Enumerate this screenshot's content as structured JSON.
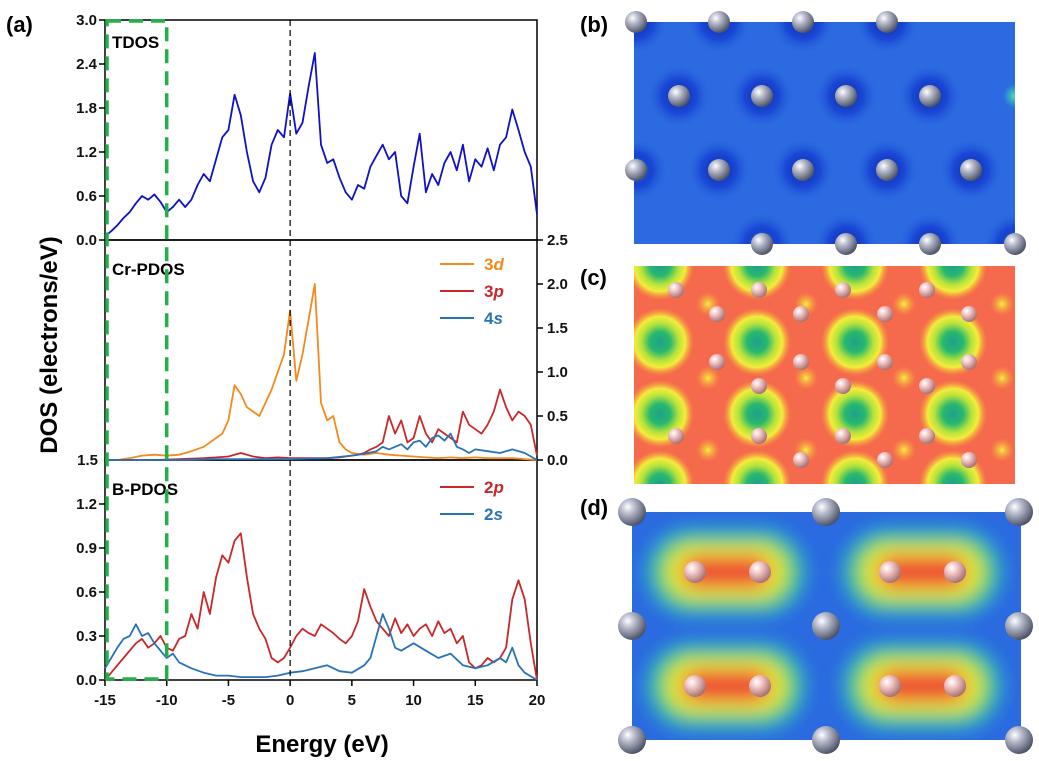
{
  "figure": {
    "panel_labels": [
      "(a)",
      "(b)",
      "(c)",
      "(d)"
    ],
    "colors": {
      "tdos": "#1010c8",
      "cr_3d": "#f28a1e",
      "cr_3p": "#c8282a",
      "cr_4s": "#2a72b8",
      "b_2p": "#c8282a",
      "b_2s": "#2a72b8",
      "dashed_box": "#22b04a",
      "fermi_line": "#000000"
    }
  },
  "chart_data": [
    {
      "type": "line",
      "title": "TDOS",
      "xlabel": "Energy (eV)",
      "ylabel": "DOS (electrons/eV)",
      "xlim": [
        -15,
        20
      ],
      "ylim": [
        0,
        3.0
      ],
      "x_ticks": [
        "-15",
        "-10",
        "-5",
        "0",
        "5",
        "10",
        "15",
        "20"
      ],
      "y_ticks": [
        "0.0",
        "0.6",
        "1.2",
        "1.8",
        "2.4",
        "3.0"
      ],
      "series": [
        {
          "name": "TDOS",
          "color_key": "tdos",
          "x": [
            -15,
            -14.5,
            -14,
            -13.5,
            -13,
            -12.5,
            -12,
            -11.5,
            -11,
            -10.5,
            -10,
            -9.5,
            -9,
            -8.5,
            -8,
            -7.5,
            -7,
            -6.5,
            -6,
            -5.5,
            -5,
            -4.5,
            -4,
            -3.5,
            -3,
            -2.5,
            -2,
            -1.5,
            -1,
            -0.5,
            0,
            0.5,
            1,
            1.5,
            2,
            2.5,
            3,
            3.5,
            4,
            4.5,
            5,
            5.5,
            6,
            6.5,
            7,
            7.5,
            8,
            8.5,
            9,
            9.5,
            10,
            10.5,
            11,
            11.5,
            12,
            12.5,
            13,
            13.5,
            14,
            14.5,
            15,
            15.5,
            16,
            16.5,
            17,
            17.5,
            18,
            18.5,
            19,
            19.5,
            20
          ],
          "values": [
            0.05,
            0.12,
            0.2,
            0.3,
            0.38,
            0.5,
            0.6,
            0.55,
            0.62,
            0.52,
            0.38,
            0.45,
            0.55,
            0.45,
            0.55,
            0.75,
            0.9,
            0.8,
            1.1,
            1.4,
            1.5,
            1.98,
            1.7,
            1.2,
            0.8,
            0.65,
            0.85,
            1.3,
            1.5,
            1.4,
            2.0,
            1.45,
            1.6,
            2.1,
            2.55,
            1.3,
            1.05,
            1.1,
            0.85,
            0.65,
            0.55,
            0.75,
            0.7,
            1.0,
            1.15,
            1.3,
            1.1,
            1.2,
            0.6,
            0.5,
            1.0,
            1.45,
            0.65,
            0.9,
            0.75,
            1.05,
            1.2,
            0.95,
            1.3,
            0.8,
            1.1,
            1.0,
            1.25,
            0.95,
            1.3,
            1.4,
            1.78,
            1.5,
            1.2,
            1.0,
            0.35
          ]
        }
      ]
    },
    {
      "type": "line",
      "title": "Cr-PDOS",
      "xlim": [
        -15,
        20
      ],
      "ylim": [
        0,
        2.5
      ],
      "y_ticks": [
        "0.0",
        "0.5",
        "1.0",
        "1.5",
        "2.0",
        "2.5"
      ],
      "left_tick": "1.5",
      "legend": [
        {
          "base": "3",
          "orbital": "d",
          "color_key": "cr_3d"
        },
        {
          "base": "3",
          "orbital": "p",
          "color_key": "cr_3p"
        },
        {
          "base": "4",
          "orbital": "s",
          "color_key": "cr_4s"
        }
      ],
      "series": [
        {
          "name": "3d",
          "color_key": "cr_3d",
          "x": [
            -15,
            -14,
            -13,
            -12,
            -11,
            -10,
            -9,
            -8,
            -7,
            -6,
            -5.5,
            -5,
            -4.5,
            -4,
            -3.5,
            -3,
            -2.5,
            -2,
            -1.5,
            -1,
            -0.5,
            0,
            0.5,
            1,
            1.5,
            2,
            2.5,
            3,
            3.5,
            4,
            4.5,
            5,
            6,
            7,
            8,
            9,
            10,
            11,
            12,
            13,
            14,
            15,
            16,
            17,
            18,
            19,
            20
          ],
          "values": [
            0.0,
            0.0,
            0.02,
            0.05,
            0.06,
            0.05,
            0.06,
            0.1,
            0.15,
            0.25,
            0.3,
            0.45,
            0.85,
            0.75,
            0.6,
            0.55,
            0.5,
            0.65,
            0.8,
            1.0,
            1.2,
            1.7,
            0.9,
            1.2,
            1.6,
            2.0,
            0.65,
            0.45,
            0.5,
            0.2,
            0.12,
            0.08,
            0.06,
            0.08,
            0.06,
            0.05,
            0.04,
            0.03,
            0.02,
            0.03,
            0.02,
            0.03,
            0.02,
            0.02,
            0.02,
            0.01,
            0.0
          ]
        },
        {
          "name": "3p",
          "color_key": "cr_3p",
          "x": [
            -15,
            -13,
            -11,
            -9,
            -7,
            -6,
            -5,
            -4,
            -3,
            -2,
            -1,
            0,
            1,
            2,
            3,
            4,
            5,
            5.5,
            6,
            6.5,
            7,
            7.5,
            8,
            8.5,
            9,
            9.5,
            10,
            10.5,
            11,
            11.5,
            12,
            12.5,
            13,
            13.5,
            14,
            14.5,
            15,
            15.5,
            16,
            16.5,
            17,
            17.5,
            18,
            18.5,
            19,
            19.5,
            20
          ],
          "values": [
            0.0,
            0.0,
            0.0,
            0.01,
            0.02,
            0.03,
            0.04,
            0.08,
            0.04,
            0.02,
            0.03,
            0.02,
            0.02,
            0.02,
            0.02,
            0.03,
            0.05,
            0.06,
            0.08,
            0.12,
            0.15,
            0.2,
            0.5,
            0.3,
            0.45,
            0.2,
            0.25,
            0.5,
            0.3,
            0.2,
            0.35,
            0.3,
            0.25,
            0.2,
            0.55,
            0.4,
            0.35,
            0.3,
            0.4,
            0.55,
            0.8,
            0.6,
            0.45,
            0.55,
            0.5,
            0.4,
            0.05
          ]
        },
        {
          "name": "4s",
          "color_key": "cr_4s",
          "x": [
            -15,
            -12,
            -9,
            -6,
            -3,
            0,
            3,
            5,
            6,
            7,
            7.5,
            8,
            8.5,
            9,
            9.5,
            10,
            10.5,
            11,
            11.5,
            12,
            12.5,
            13,
            13.5,
            14,
            14.5,
            15,
            16,
            17,
            18,
            19,
            20
          ],
          "values": [
            0.0,
            0.0,
            0.0,
            0.01,
            0.01,
            0.01,
            0.02,
            0.05,
            0.07,
            0.1,
            0.15,
            0.12,
            0.15,
            0.18,
            0.12,
            0.2,
            0.22,
            0.15,
            0.25,
            0.28,
            0.22,
            0.3,
            0.15,
            0.12,
            0.08,
            0.12,
            0.1,
            0.08,
            0.12,
            0.08,
            0.0
          ]
        }
      ]
    },
    {
      "type": "line",
      "title": "B-PDOS",
      "xlim": [
        -15,
        20
      ],
      "ylim": [
        0,
        1.5
      ],
      "y_ticks": [
        "0.0",
        "0.3",
        "0.6",
        "0.9",
        "1.2"
      ],
      "legend": [
        {
          "base": "2",
          "orbital": "p",
          "color_key": "b_2p"
        },
        {
          "base": "2",
          "orbital": "s",
          "color_key": "b_2s"
        }
      ],
      "series": [
        {
          "name": "2p",
          "color_key": "b_2p",
          "x": [
            -15,
            -14.5,
            -14,
            -13.5,
            -13,
            -12.5,
            -12,
            -11.5,
            -11,
            -10.5,
            -10,
            -9.5,
            -9,
            -8.5,
            -8,
            -7.5,
            -7,
            -6.5,
            -6,
            -5.5,
            -5,
            -4.5,
            -4,
            -3.5,
            -3,
            -2.5,
            -2,
            -1.5,
            -1,
            -0.5,
            0,
            0.5,
            1,
            1.5,
            2,
            2.5,
            3,
            3.5,
            4,
            4.5,
            5,
            5.5,
            6,
            6.5,
            7,
            7.5,
            8,
            8.5,
            9,
            9.5,
            10,
            10.5,
            11,
            11.5,
            12,
            12.5,
            13,
            13.5,
            14,
            14.5,
            15,
            15.5,
            16,
            16.5,
            17,
            17.5,
            18,
            18.5,
            19,
            19.5,
            20
          ],
          "values": [
            0.0,
            0.05,
            0.1,
            0.15,
            0.2,
            0.25,
            0.28,
            0.22,
            0.25,
            0.3,
            0.22,
            0.2,
            0.28,
            0.3,
            0.45,
            0.35,
            0.6,
            0.45,
            0.7,
            0.85,
            0.8,
            0.95,
            1.0,
            0.7,
            0.45,
            0.35,
            0.28,
            0.15,
            0.12,
            0.15,
            0.22,
            0.3,
            0.35,
            0.32,
            0.3,
            0.38,
            0.35,
            0.32,
            0.28,
            0.25,
            0.3,
            0.4,
            0.62,
            0.5,
            0.4,
            0.35,
            0.3,
            0.42,
            0.32,
            0.38,
            0.3,
            0.35,
            0.38,
            0.3,
            0.4,
            0.32,
            0.35,
            0.25,
            0.3,
            0.12,
            0.08,
            0.1,
            0.15,
            0.12,
            0.15,
            0.22,
            0.55,
            0.68,
            0.55,
            0.25,
            0.0
          ]
        },
        {
          "name": "2s",
          "color_key": "b_2s",
          "x": [
            -15,
            -14.5,
            -14,
            -13.5,
            -13,
            -12.5,
            -12,
            -11.5,
            -11,
            -10.5,
            -10,
            -9.5,
            -9,
            -8,
            -7,
            -6,
            -5,
            -4,
            -3,
            -2,
            -1,
            0,
            1,
            2,
            3,
            4,
            5,
            6,
            6.5,
            7,
            7.5,
            8,
            8.5,
            9,
            10,
            11,
            12,
            13,
            14,
            15,
            16,
            17,
            17.5,
            18,
            18.5,
            19,
            20
          ],
          "values": [
            0.08,
            0.15,
            0.22,
            0.28,
            0.3,
            0.38,
            0.3,
            0.32,
            0.25,
            0.2,
            0.15,
            0.18,
            0.12,
            0.08,
            0.05,
            0.03,
            0.03,
            0.02,
            0.02,
            0.02,
            0.03,
            0.05,
            0.06,
            0.08,
            0.1,
            0.06,
            0.05,
            0.1,
            0.15,
            0.3,
            0.45,
            0.35,
            0.22,
            0.2,
            0.25,
            0.2,
            0.15,
            0.18,
            0.1,
            0.08,
            0.1,
            0.15,
            0.12,
            0.22,
            0.1,
            0.05,
            0.0
          ]
        }
      ]
    }
  ]
}
